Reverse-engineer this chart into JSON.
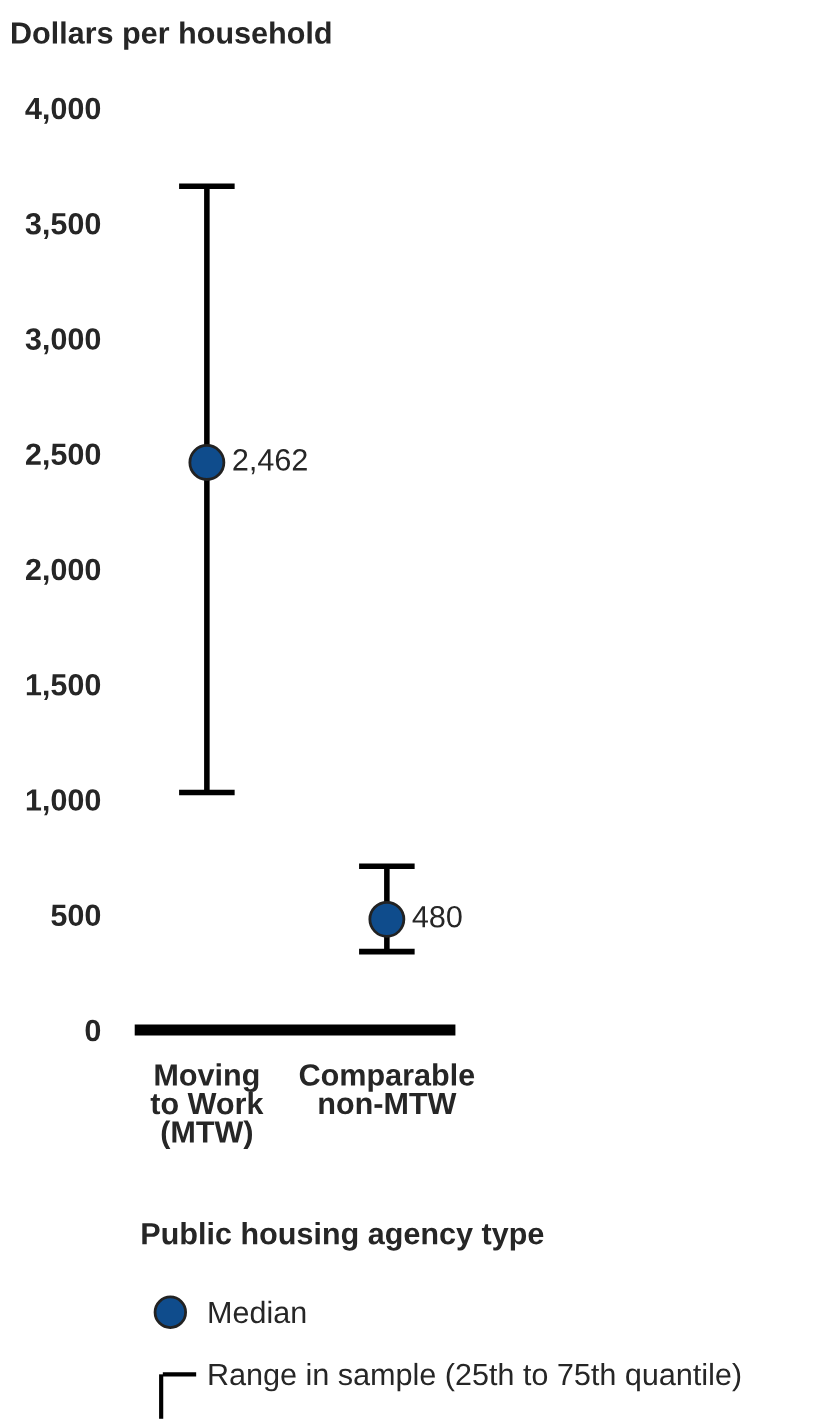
{
  "chart_data": {
    "type": "scatter",
    "ylabel": "Dollars per household",
    "xlabel": "Public housing agency type",
    "categories": [
      "Moving\nto Work\n(MTW)",
      "Comparable\nnon-MTW"
    ],
    "series": [
      {
        "name": "Median",
        "color": "#0f4c8c",
        "values": [
          2462,
          480
        ],
        "value_labels": [
          "2,462",
          "480"
        ],
        "errors": [
          [
            1030,
            3660
          ],
          [
            340,
            710
          ]
        ]
      }
    ],
    "ylim": [
      0,
      4000
    ],
    "yticks": [
      {
        "value": 0,
        "label": "0"
      },
      {
        "value": 500,
        "label": "500"
      },
      {
        "value": 1000,
        "label": "1,000"
      },
      {
        "value": 1500,
        "label": "1,500"
      },
      {
        "value": 2000,
        "label": "2,000"
      },
      {
        "value": 2500,
        "label": "2,500"
      },
      {
        "value": 3000,
        "label": "3,000"
      },
      {
        "value": 3500,
        "label": "3,500"
      },
      {
        "value": 4000,
        "label": "4,000"
      }
    ],
    "annotations": [
      "Range in sample (25th to 75th quantile)"
    ],
    "marker": "circle",
    "legend": "bottom",
    "grid": false
  }
}
